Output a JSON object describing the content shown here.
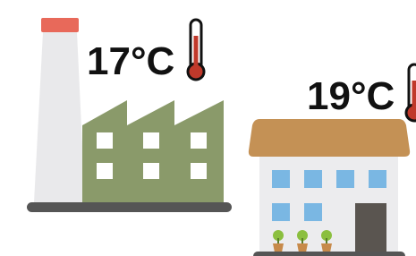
{
  "factory": {
    "temperature": "17°C"
  },
  "house": {
    "temperature": "19°C"
  }
}
